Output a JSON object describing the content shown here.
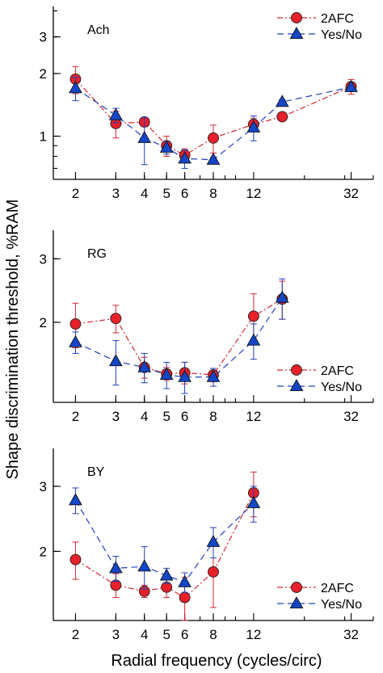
{
  "figure": {
    "ylabel": "Shape discrimination threshold, %RAM",
    "xlabel": "Radial frequency (cycles/circ)"
  },
  "colors": {
    "twoafc_fill": "#e8202a",
    "twoafc_line": "#d8262e",
    "yesno_fill": "#1446c8",
    "yesno_line": "#1e40c0"
  },
  "chart_data": [
    {
      "type": "line",
      "title": "Ach",
      "x_scale": "log",
      "y_scale": "log",
      "xlim": [
        1.6,
        40
      ],
      "ylim": [
        0.62,
        4.2
      ],
      "x_ticks": [
        2,
        3,
        4,
        5,
        6,
        8,
        12,
        32
      ],
      "y_ticks": [
        1,
        2,
        3
      ],
      "legend_position": "top-right",
      "series": [
        {
          "name": "2AFC",
          "marker": "circle",
          "line": "dash-dot",
          "x": [
            2,
            3,
            4,
            5,
            6,
            8,
            12,
            16,
            32
          ],
          "y": [
            1.88,
            1.15,
            1.17,
            0.9,
            0.81,
            0.98,
            1.14,
            1.24,
            1.73
          ],
          "err": [
            0.28,
            0.17,
            0.06,
            0.1,
            0.06,
            0.15,
            0.08,
            0.05,
            0.14
          ]
        },
        {
          "name": "Yes/No",
          "marker": "triangle",
          "line": "dashed",
          "x": [
            2,
            3,
            4,
            5,
            6,
            8,
            12,
            16,
            32
          ],
          "y": [
            1.7,
            1.26,
            0.98,
            0.88,
            0.78,
            0.77,
            1.1,
            1.46,
            1.72
          ],
          "err": [
            0.22,
            0.1,
            0.25,
            0.06,
            0.08,
            0.02,
            0.15,
            0.04,
            0.06
          ]
        }
      ]
    },
    {
      "type": "line",
      "title": "RG",
      "x_scale": "log",
      "y_scale": "log",
      "xlim": [
        1.6,
        40
      ],
      "ylim": [
        1.2,
        3.6
      ],
      "x_ticks": [
        2,
        3,
        4,
        5,
        6,
        8,
        12,
        32
      ],
      "y_ticks": [
        2,
        3
      ],
      "legend_position": "bottom-right",
      "series": [
        {
          "name": "2AFC",
          "marker": "circle",
          "line": "dash-dot",
          "x": [
            2,
            3,
            4,
            5,
            6,
            8,
            12,
            16
          ],
          "y": [
            1.98,
            2.05,
            1.5,
            1.44,
            1.45,
            1.43,
            2.08,
            2.32
          ],
          "err": [
            0.28,
            0.18,
            0.1,
            0.06,
            0.1,
            0.06,
            0.32,
            0.28
          ]
        },
        {
          "name": "Yes/No",
          "marker": "triangle",
          "line": "dashed",
          "x": [
            2,
            3,
            4,
            5,
            6,
            8,
            12,
            16
          ],
          "y": [
            1.76,
            1.56,
            1.5,
            1.43,
            1.41,
            1.41,
            1.78,
            2.34
          ],
          "err": [
            0.12,
            0.22,
            0.14,
            0.12,
            0.14,
            0.08,
            0.2,
            0.3
          ]
        }
      ]
    },
    {
      "type": "line",
      "title": "BY",
      "x_scale": "log",
      "y_scale": "log",
      "xlim": [
        1.6,
        40
      ],
      "ylim": [
        1.3,
        3.8
      ],
      "x_ticks": [
        2,
        3,
        4,
        5,
        6,
        8,
        12,
        32
      ],
      "y_ticks": [
        2,
        3
      ],
      "legend_position": "bottom-right",
      "series": [
        {
          "name": "2AFC",
          "marker": "circle",
          "line": "dash-dot",
          "x": [
            2,
            3,
            4,
            5,
            6,
            8,
            12
          ],
          "y": [
            1.9,
            1.62,
            1.56,
            1.6,
            1.5,
            1.76,
            2.88
          ],
          "err": [
            0.22,
            0.12,
            0.06,
            0.1,
            0.2,
            0.35,
            0.4
          ]
        },
        {
          "name": "Yes/No",
          "marker": "triangle",
          "line": "dashed",
          "x": [
            2,
            3,
            4,
            5,
            6,
            8,
            12
          ],
          "y": [
            2.75,
            1.8,
            1.82,
            1.72,
            1.65,
            2.12,
            2.7
          ],
          "err": [
            0.22,
            0.14,
            0.24,
            0.08,
            0.1,
            0.2,
            0.3
          ]
        }
      ]
    }
  ]
}
